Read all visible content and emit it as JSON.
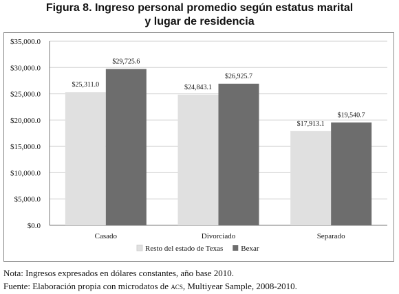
{
  "title_line1": "Figura 8. Ingreso personal promedio según estatus marital",
  "title_line2": "y lugar de residencia",
  "notes": {
    "note": "Nota: Ingresos expresados en dólares constantes, año base 2010.",
    "source_prefix": "Fuente: Elaboración propia con microdatos de",
    "source_acs": "ACS",
    "source_suffix": ", Multiyear Sample, 2008-2010."
  },
  "chart_data": {
    "type": "bar",
    "title": "",
    "xlabel": "",
    "ylabel": "",
    "categories": [
      "Casado",
      "Divorciado",
      "Separado"
    ],
    "series": [
      {
        "name": "Resto del estado de Texas",
        "color": "#e0e0e0",
        "values": [
          25311.0,
          24843.1,
          17913.1
        ],
        "labels": [
          "$25,311.0",
          "$24,843.1",
          "$17,913.1"
        ]
      },
      {
        "name": "Bexar",
        "color": "#6d6d6d",
        "values": [
          29725.6,
          26925.7,
          19540.7
        ],
        "labels": [
          "$29,725.6",
          "$26,925.7",
          "$19,540.7"
        ]
      }
    ],
    "ylim": [
      0,
      35000
    ],
    "yticks": [
      0,
      5000,
      10000,
      15000,
      20000,
      25000,
      30000,
      35000
    ],
    "ytick_labels": [
      "$0.0",
      "$5,000.0",
      "$10,000.0",
      "$15,000.0",
      "$20,000.0",
      "$25,000.0",
      "$30,000.0",
      "$35,000.0"
    ],
    "grid": true,
    "legend_position": "bottom"
  }
}
